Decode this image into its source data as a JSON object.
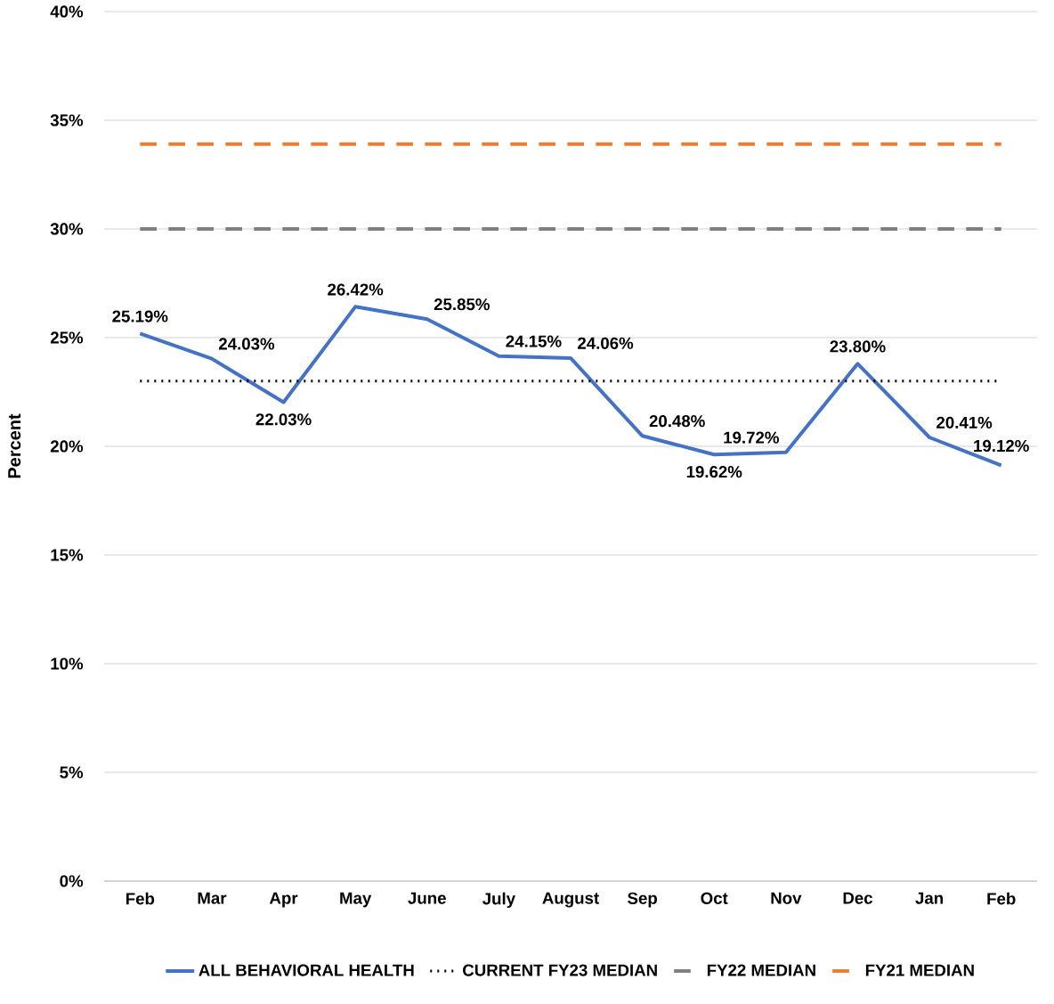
{
  "chart_data": {
    "type": "line",
    "ylabel": "Percent",
    "categories": [
      "Feb",
      "Mar",
      "Apr",
      "May",
      "June",
      "July",
      "August",
      "Sep",
      "Oct",
      "Nov",
      "Dec",
      "Jan",
      "Feb"
    ],
    "series": [
      {
        "name": "ALL BEHAVIORAL HEALTH",
        "color": "#4472c4",
        "line_style": "solid",
        "values": [
          25.19,
          24.03,
          22.03,
          26.42,
          25.85,
          24.15,
          24.06,
          20.48,
          19.62,
          19.72,
          23.8,
          20.41,
          19.12
        ],
        "value_labels": [
          "25.19%",
          "24.03%",
          "22.03%",
          "26.42%",
          "25.85%",
          "24.15%",
          "24.06%",
          "20.48%",
          "19.62%",
          "19.72%",
          "23.80%",
          "20.41%",
          "19.12%"
        ]
      },
      {
        "name": "CURRENT FY23 MEDIAN",
        "color": "#000000",
        "line_style": "dotted",
        "values": [
          23.0,
          23.0,
          23.0,
          23.0,
          23.0,
          23.0,
          23.0,
          23.0,
          23.0,
          23.0,
          23.0,
          23.0,
          23.0
        ]
      },
      {
        "name": "FY22 MEDIAN",
        "color": "#7f7f7f",
        "line_style": "dashed",
        "values": [
          30.0,
          30.0,
          30.0,
          30.0,
          30.0,
          30.0,
          30.0,
          30.0,
          30.0,
          30.0,
          30.0,
          30.0,
          30.0
        ]
      },
      {
        "name": "FY21 MEDIAN",
        "color": "#ed7d31",
        "line_style": "dashed",
        "values": [
          33.9,
          33.9,
          33.9,
          33.9,
          33.9,
          33.9,
          33.9,
          33.9,
          33.9,
          33.9,
          33.9,
          33.9,
          33.9
        ]
      }
    ],
    "ylim": [
      0,
      40
    ],
    "yticks": [
      {
        "value": 0,
        "label": "0%"
      },
      {
        "value": 5,
        "label": "5%"
      },
      {
        "value": 10,
        "label": "10%"
      },
      {
        "value": 15,
        "label": "15%"
      },
      {
        "value": 20,
        "label": "20%"
      },
      {
        "value": 25,
        "label": "25%"
      },
      {
        "value": 30,
        "label": "30%"
      },
      {
        "value": 35,
        "label": "35%"
      },
      {
        "value": 40,
        "label": "40%"
      }
    ],
    "grid": "y",
    "legend": "bottom",
    "marker": "none"
  }
}
